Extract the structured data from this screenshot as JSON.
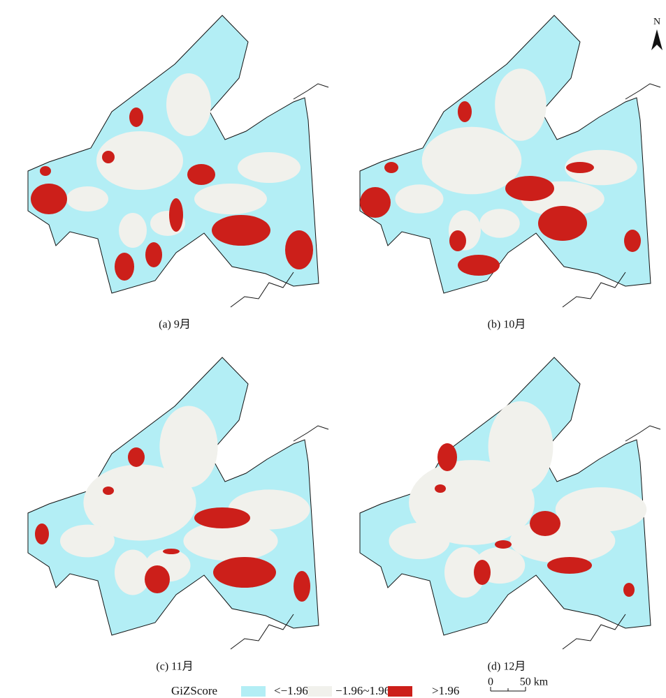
{
  "panels": [
    {
      "caption": "(a) 9月"
    },
    {
      "caption": "(b) 10月"
    },
    {
      "caption": "(c) 11月"
    },
    {
      "caption": "(d) 12月"
    }
  ],
  "legend": {
    "title": "GiZScore",
    "items": [
      {
        "label": "<−1.96",
        "color": "#b3eef5"
      },
      {
        "label": "−1.96~1.96",
        "color": "#f1f1ec"
      },
      {
        "label": ">1.96",
        "color": "#cc1f1a"
      }
    ]
  },
  "scale_bar": {
    "labels": [
      "0",
      "50 km"
    ]
  },
  "north_arrow": "N"
}
